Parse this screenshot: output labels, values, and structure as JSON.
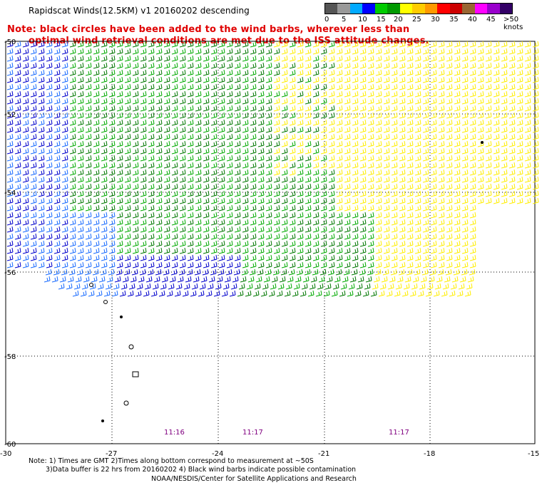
{
  "header": {
    "title": "Rapidscat Winds(12.5KM) v1 20160202 descending",
    "note_line1": "Note: black circles have been added to the wind barbs, wherever less than",
    "note_line2": "optimal wind retrieval conditions are met due to the ISS attitude changes."
  },
  "legend": {
    "labels": [
      "0",
      "5",
      "10",
      "15",
      "20",
      "25",
      "30",
      "35",
      "40",
      "45",
      ">50 knots"
    ],
    "colors": [
      "#555555",
      "#999999",
      "#00aaff",
      "#0000ff",
      "#00cc00",
      "#009900",
      "#ffff00",
      "#ffcc00",
      "#ff9900",
      "#ff0000",
      "#cc0000",
      "#996633",
      "#ff00ff",
      "#9900cc",
      "#330066"
    ]
  },
  "axes": {
    "x_ticks": [
      "-30",
      "-27",
      "-24",
      "-21",
      "-18",
      "-15"
    ],
    "y_ticks": [
      "-50",
      "-52",
      "-54",
      "-56",
      "-58",
      "-60"
    ]
  },
  "times": [
    "11:16",
    "11:17",
    "11:17"
  ],
  "footer": {
    "line1": "Note: 1) Times are GMT 2)Times along bottom correspond to measurement at ~50S",
    "line2": "3)Data buffer is 22 hrs from 20160202 4) Black wind barbs indicate possible contamination",
    "line3": "NOAA/NESDIS/Center for Satellite Applications and Research"
  },
  "barb_colors": {
    "blue": "#0000cc",
    "lightblue": "#1a6cff",
    "green": "#00aa00",
    "darkgreen": "#007700",
    "yellow": "#ffee00"
  }
}
